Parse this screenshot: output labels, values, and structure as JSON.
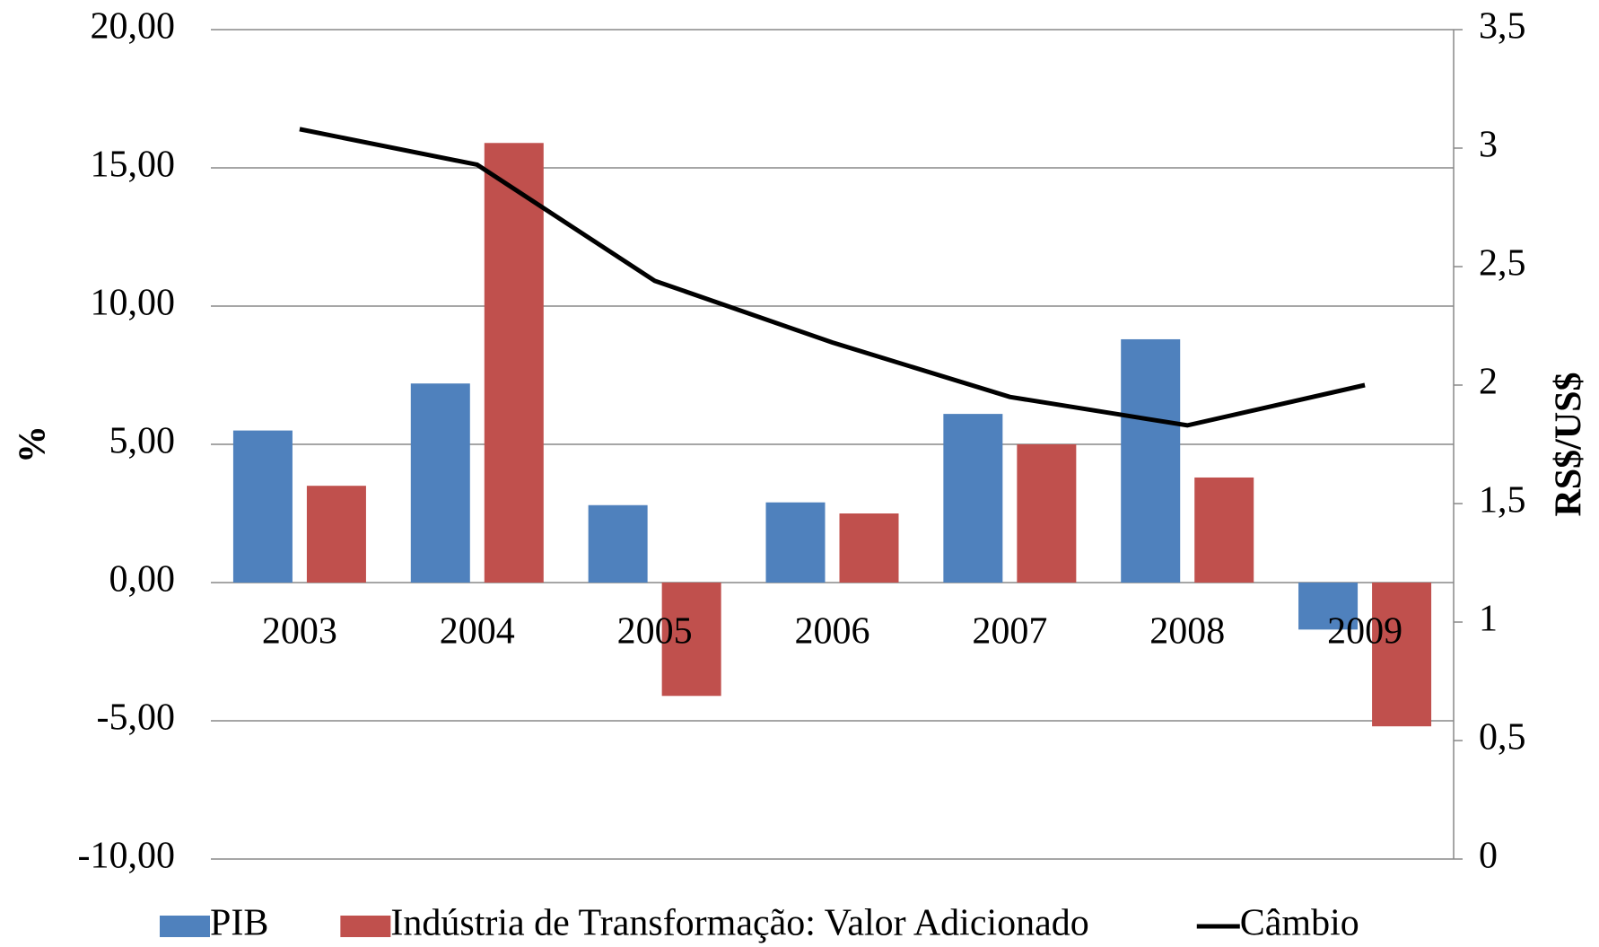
{
  "chart_data": {
    "type": "bar",
    "categories": [
      "2003",
      "2004",
      "2005",
      "2006",
      "2007",
      "2008",
      "2009"
    ],
    "series": [
      {
        "name": "PIB",
        "color": "#4f81bd",
        "values": [
          5.5,
          7.2,
          2.8,
          2.9,
          6.1,
          8.8,
          -1.7
        ]
      },
      {
        "name": "Indústria de Transformação: Valor Adicionado",
        "color": "#c0504d",
        "values": [
          3.5,
          15.9,
          -4.1,
          2.5,
          5.0,
          3.8,
          -5.2
        ]
      },
      {
        "name": "Câmbio",
        "color": "#000000",
        "type": "line",
        "axis": "y2",
        "values": [
          3.08,
          2.93,
          2.44,
          2.18,
          1.95,
          1.83,
          2.0
        ]
      }
    ],
    "ylabel": "%",
    "y2label": "RS$/US$",
    "ylim": [
      -10,
      20
    ],
    "yticks": [
      {
        "value": -10,
        "label": "-10,00"
      },
      {
        "value": -5,
        "label": "-5,00"
      },
      {
        "value": 0,
        "label": "0,00"
      },
      {
        "value": 5,
        "label": "5,00"
      },
      {
        "value": 10,
        "label": "10,00"
      },
      {
        "value": 15,
        "label": "15,00"
      },
      {
        "value": 20,
        "label": "20,00"
      }
    ],
    "y2lim": [
      0,
      3.5
    ],
    "y2ticks": [
      0,
      {
        "value": 0.5,
        "label": "0,5"
      },
      1,
      {
        "value": 1.5,
        "label": "1,5"
      },
      2,
      {
        "value": 2.5,
        "label": "2,5"
      },
      3,
      {
        "value": 3.5,
        "label": "3,5"
      }
    ],
    "grid": true,
    "legend": "bottom"
  }
}
